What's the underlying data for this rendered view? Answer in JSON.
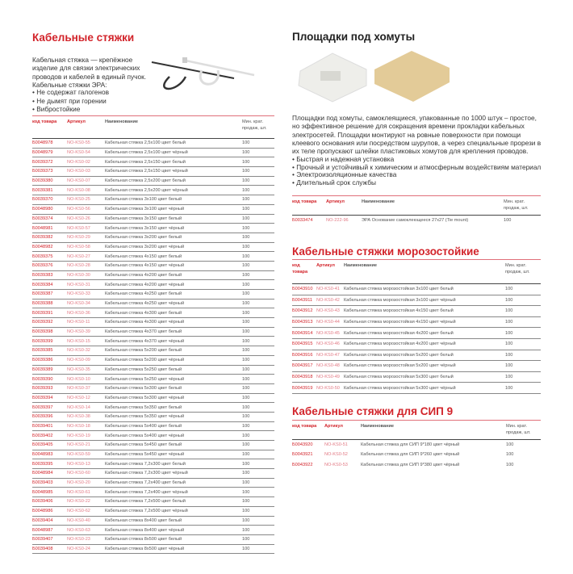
{
  "left": {
    "title": "Кабельные стяжки",
    "intro": "Кабельная стяжка — крепёжное изделие для связки электрических проводов и кабелей в единый пучок. Кабельные стяжки ЭРА:",
    "bullets": [
      "Не содержат галогенов",
      "Не дымят при горении",
      "Вибростойкие"
    ],
    "table": {
      "headers": [
        "код товара",
        "Артикул",
        "Наименование",
        "Мин. крат. продаж, шт."
      ],
      "rows": [
        [
          "Б0048978",
          "NO-KS0-55",
          "Кабельная стяжка 2,5х100 цвет белый",
          "100"
        ],
        [
          "Б0048979",
          "NO-KS0-54",
          "Кабельная стяжка 2,5х100 цвет чёрный",
          "100"
        ],
        [
          "Б0039372",
          "NO-KS0-02",
          "Кабельная стяжка 2,5х150 цвет белый",
          "100"
        ],
        [
          "Б0039373",
          "NO-KS0-03",
          "Кабельная стяжка 2,5х150 цвет чёрный",
          "100"
        ],
        [
          "Б0039380",
          "NO-KS0-07",
          "Кабельная стяжка 2,5х200 цвет белый",
          "100"
        ],
        [
          "Б0039381",
          "NO-KS0-08",
          "Кабельная стяжка 2,5х200 цвет чёрный",
          "100"
        ],
        [
          "Б0039370",
          "NO-KS0-25",
          "Кабельная стяжка 3х100 цвет белый",
          "100"
        ],
        [
          "Б0048980",
          "NO-KS0-56",
          "Кабельная стяжка 3х100 цвет чёрный",
          "100"
        ],
        [
          "Б0039374",
          "NO-KS0-26",
          "Кабельная стяжка 3х150 цвет белый",
          "100"
        ],
        [
          "Б0048981",
          "NO-KS0-57",
          "Кабельная стяжка 3х150 цвет чёрный",
          "100"
        ],
        [
          "Б0039382",
          "NO-KS0-29",
          "Кабельная стяжка 3х200 цвет белый",
          "100"
        ],
        [
          "Б0048982",
          "NO-KS0-58",
          "Кабельная стяжка 3х200 цвет чёрный",
          "100"
        ],
        [
          "Б0039375",
          "NO-KS0-27",
          "Кабельная стяжка 4х150 цвет белый",
          "100"
        ],
        [
          "Б0039376",
          "NO-KS0-28",
          "Кабельная стяжка 4х150 цвет чёрный",
          "100"
        ],
        [
          "Б0039383",
          "NO-KS0-30",
          "Кабельная стяжка 4х200 цвет белый",
          "100"
        ],
        [
          "Б0039384",
          "NO-KS0-31",
          "Кабельная стяжка 4х200 цвет чёрный",
          "100"
        ],
        [
          "Б0039387",
          "NO-KS0-33",
          "Кабельная стяжка 4х250 цвет белый",
          "100"
        ],
        [
          "Б0039388",
          "NO-KS0-34",
          "Кабельная стяжка 4х250 цвет чёрный",
          "100"
        ],
        [
          "Б0039391",
          "NO-KS0-36",
          "Кабельная стяжка 4х300 цвет белый",
          "100"
        ],
        [
          "Б0039392",
          "NO-KS0-11",
          "Кабельная стяжка 4х300 цвет чёрный",
          "100"
        ],
        [
          "Б0039398",
          "NO-KS0-39",
          "Кабельная стяжка 4х370 цвет белый",
          "100"
        ],
        [
          "Б0039399",
          "NO-KS0-15",
          "Кабельная стяжка 4х370 цвет чёрный",
          "100"
        ],
        [
          "Б0039385",
          "NO-KS0-32",
          "Кабельная стяжка 5х200 цвет белый",
          "100"
        ],
        [
          "Б0039386",
          "NO-KS0-09",
          "Кабельная стяжка 5х200 цвет чёрный",
          "100"
        ],
        [
          "Б0039389",
          "NO-KS0-35",
          "Кабельная стяжка 5х250 цвет белый",
          "100"
        ],
        [
          "Б0039390",
          "NO-KS0-10",
          "Кабельная стяжка 5х250 цвет чёрный",
          "100"
        ],
        [
          "Б0039393",
          "NO-KS0-37",
          "Кабельная стяжка 5х300 цвет белый",
          "100"
        ],
        [
          "Б0039394",
          "NO-KS0-12",
          "Кабельная стяжка 5х300 цвет чёрный",
          "100"
        ],
        [
          "Б0039397",
          "NO-KS0-14",
          "Кабельная стяжка 5х350 цвет белый",
          "100"
        ],
        [
          "Б0039396",
          "NO-KS0-38",
          "Кабельная стяжка 5х350 цвет чёрный",
          "100"
        ],
        [
          "Б0039401",
          "NO-KS0-18",
          "Кабельная стяжка 5х400 цвет белый",
          "100"
        ],
        [
          "Б0039402",
          "NO-KS0-19",
          "Кабельная стяжка 5х400 цвет чёрный",
          "100"
        ],
        [
          "Б0039405",
          "NO-KS0-21",
          "Кабельная стяжка 5х450 цвет белый",
          "100"
        ],
        [
          "Б0048983",
          "NO-KS0-59",
          "Кабельная стяжка 5х450 цвет чёрный",
          "100"
        ],
        [
          "Б0039395",
          "NO-KS0-13",
          "Кабельная стяжка 7,2х300 цвет белый",
          "100"
        ],
        [
          "Б0048984",
          "NO-KS0-60",
          "Кабельная стяжка 7,2х300 цвет чёрный",
          "100"
        ],
        [
          "Б0039403",
          "NO-KS0-20",
          "Кабельная стяжка 7,2х400 цвет белый",
          "100"
        ],
        [
          "Б0048985",
          "NO-KS0-61",
          "Кабельная стяжка 7,2х400 цвет чёрный",
          "100"
        ],
        [
          "Б0039406",
          "NO-KS0-22",
          "Кабельная стяжка 7,2х500 цвет белый",
          "100"
        ],
        [
          "Б0048986",
          "NO-KS0-62",
          "Кабельная стяжка 7,2х500 цвет чёрный",
          "100"
        ],
        [
          "Б0039404",
          "NO-KS0-40",
          "Кабельная стяжка 8х400 цвет белый",
          "100"
        ],
        [
          "Б0048987",
          "NO-KS0-63",
          "Кабельная стяжка 8х400 цвет чёрный",
          "100"
        ],
        [
          "Б0039407",
          "NO-KS0-23",
          "Кабельная стяжка 8х500 цвет белый",
          "100"
        ],
        [
          "Б0039408",
          "NO-KS0-24",
          "Кабельная стяжка 8х500 цвет чёрный",
          "100"
        ]
      ]
    }
  },
  "pads": {
    "title": "Площадки под хомуты",
    "intro": "Площадки под хомуты, самоклеящиеся, упакованные по 1000 штук – простое, но эффективное решение для сокращения времени прокладки кабельных электросетей. Площадки монтируют на ровные поверхности при помощи клеевого основания или посредством шурупов, а через специальные прорези в их теле пропускают шлейки пластиковых хомутов для крепления проводов.",
    "bullets": [
      "Быстрая и надежная установка",
      "Прочный и устойчивый к химическим и атмосферным воздействиям материал",
      "Электроизоляционные качества",
      "Длительный срок службы"
    ],
    "table": {
      "headers": [
        "код товара",
        "Артикул",
        "Наименование",
        "Мин. крат. продаж, шт."
      ],
      "rows": [
        [
          "Б0033474",
          "NO-222-96",
          "ЭРА Основание самоклеющееся 27x27 (Tie mount)",
          "100"
        ]
      ]
    }
  },
  "frost": {
    "title": "Кабельные стяжки морозостойкие",
    "table": {
      "headers": [
        "код товара",
        "Артикул",
        "Наименование",
        "Мин. крат. продаж, шт."
      ],
      "rows": [
        [
          "Б0043910",
          "NO-KS0-41",
          "Кабельная стяжка морозостойкая 3х100  цвет белый",
          "100"
        ],
        [
          "Б0043911",
          "NO-KS0-42",
          "Кабельная стяжка морозостойкая 3х100  цвет чёрный",
          "100"
        ],
        [
          "Б0043912",
          "NO-KS0-43",
          "Кабельная стяжка морозостойкая 4х150  цвет белый",
          "100"
        ],
        [
          "Б0043913",
          "NO-KS0-44",
          "Кабельная стяжка морозостойкая  4х150  цвет чёрный",
          "100"
        ],
        [
          "Б0043914",
          "NO-KS0-45",
          "Кабельная стяжка морозостойкая 4х200  цвет белый",
          "100"
        ],
        [
          "Б0043915",
          "NO-KS0-46",
          "Кабельная стяжка морозостойкая 4х200  цвет чёрный",
          "100"
        ],
        [
          "Б0043916",
          "NO-KS0-47",
          "Кабельная стяжка морозостойкая 5х200  цвет белый",
          "100"
        ],
        [
          "Б0043917",
          "NO-KS0-48",
          "Кабельная стяжка морозостойкая 5х200  цвет чёрный",
          "100"
        ],
        [
          "Б0043918",
          "NO-KS0-49",
          "Кабельная стяжка морозостойкая 5х300  цвет белый",
          "100"
        ],
        [
          "Б0043919",
          "NO-KS0-50",
          "Кабельная стяжка морозостойкая 5х300  цвет чёрный",
          "100"
        ]
      ]
    }
  },
  "sip": {
    "title": "Кабельные стяжки  для СИП 9",
    "table": {
      "headers": [
        "код товара",
        "Артикул",
        "Наименование",
        "Мин. крат. продаж, шт."
      ],
      "rows": [
        [
          "Б0043920",
          "NO-KS0-51",
          "Кабельная стяжка для СИП 9*180 цвет чёрный",
          "100"
        ],
        [
          "Б0043921",
          "NO-KS0-52",
          "Кабельная стяжка для СИП 9*260 цвет чёрный",
          "100"
        ],
        [
          "Б0043922",
          "NO-KS0-53",
          "Кабельная стяжка для СИП 9*380 цвет чёрный",
          "100"
        ]
      ]
    }
  },
  "colors": {
    "accent": "#d2232a",
    "article": "#e27a85"
  }
}
